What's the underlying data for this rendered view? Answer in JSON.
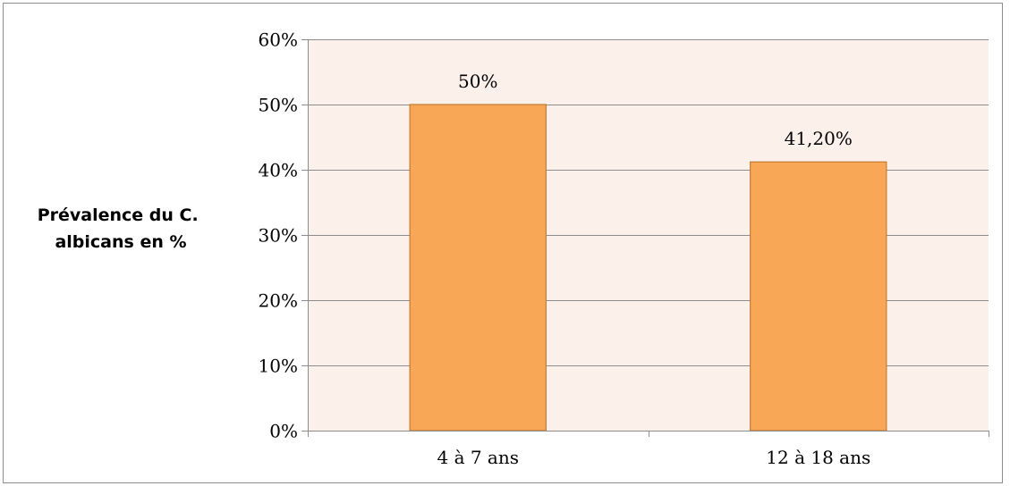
{
  "chart_data": {
    "type": "bar",
    "categories": [
      "4 à 7 ans",
      "12 à 18 ans"
    ],
    "values": [
      0.5,
      0.412
    ],
    "data_labels": [
      "50%",
      "41,20%"
    ],
    "title": "",
    "xlabel": "",
    "ylabel_lines": [
      "Prévalence du C.",
      "albicans en %"
    ],
    "ylim": [
      0,
      0.6
    ],
    "yticks": [
      0,
      0.1,
      0.2,
      0.3,
      0.4,
      0.5,
      0.6
    ],
    "ytick_labels": [
      "0%",
      "10%",
      "20%",
      "30%",
      "40%",
      "50%",
      "60%"
    ],
    "grid": true,
    "legend": false,
    "colors": {
      "bar_fill": "#F8A757",
      "bar_stroke": "#C77A32",
      "plot_background": "#FCF0EB",
      "gridline": "#8c8c8c",
      "axis": "#8c8c8c"
    }
  }
}
